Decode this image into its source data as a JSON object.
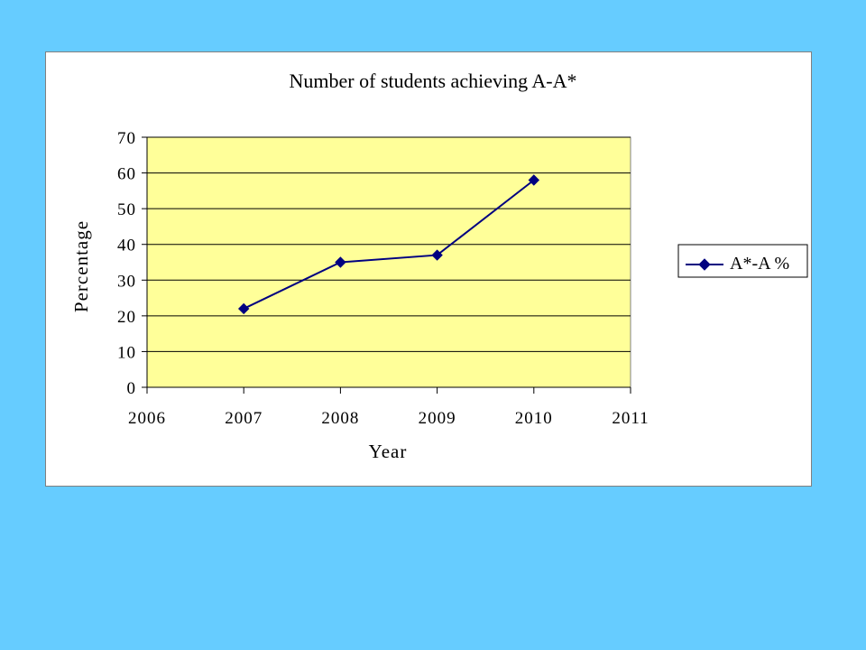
{
  "chart_data": {
    "type": "line",
    "title": "Number of students achieving A-A*",
    "xlabel": "Year",
    "ylabel": "Percentage",
    "x_ticks": [
      "2006",
      "2007",
      "2008",
      "2009",
      "2010",
      "2011"
    ],
    "y_ticks": [
      "0",
      "10",
      "20",
      "30",
      "40",
      "50",
      "60",
      "70"
    ],
    "xlim": [
      2006,
      2011
    ],
    "ylim": [
      0,
      70
    ],
    "grid": true,
    "legend_position": "right",
    "plot_background": "#ffff99",
    "series": [
      {
        "name": "A*-A %",
        "color": "#000080",
        "marker": "diamond",
        "x": [
          2007,
          2008,
          2009,
          2010
        ],
        "y": [
          22,
          35,
          37,
          58
        ]
      }
    ]
  }
}
